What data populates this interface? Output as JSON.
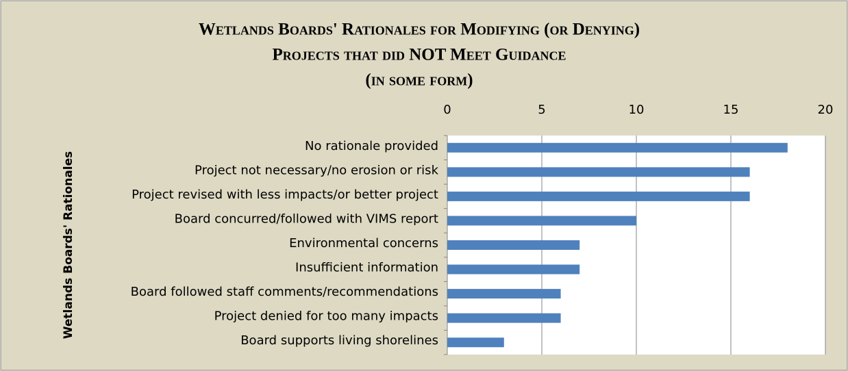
{
  "chart_data": {
    "type": "bar",
    "orientation": "horizontal",
    "title": [
      "Wetlands Boards' Rationales for Modifying (or Denying)",
      "Projects that did NOT Meet Guidance",
      "(in some form)"
    ],
    "y_label": "Wetlands Boards' Rationales",
    "categories": [
      "No rationale provided",
      "Project not necessary/no erosion or risk",
      "Project revised with less impacts/or better project",
      "Board concurred/followed with VIMS report",
      "Environmental concerns",
      "Insufficient information",
      "Board followed staff comments/recommendations",
      "Project denied for too many impacts",
      "Board supports living shorelines"
    ],
    "values": [
      18,
      16,
      16,
      10,
      7,
      7,
      6,
      6,
      3
    ],
    "color": "#4f81bd",
    "xlim": [
      0,
      20
    ],
    "xticks": [
      0,
      5,
      10,
      15,
      20
    ],
    "grid": true
  }
}
